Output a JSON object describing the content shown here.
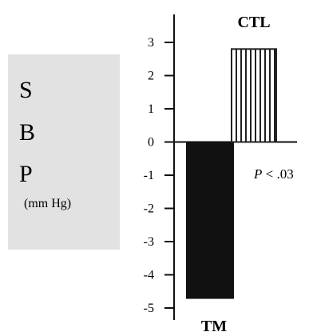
{
  "chart_data": {
    "type": "bar",
    "categories": [
      "TM",
      "CTL"
    ],
    "values": [
      -4.7,
      2.8
    ],
    "ylabel_letters": [
      "S",
      "B",
      "P"
    ],
    "ylabel_unit": "(mm Hg)",
    "ylim": [
      -5,
      3
    ],
    "yticks": [
      3,
      2,
      1,
      0,
      -1,
      -2,
      -3,
      -4,
      -5
    ],
    "ytick_labels": [
      "3",
      "2",
      "1",
      "0",
      "-1",
      "-2",
      "-3",
      "-4",
      "-5"
    ],
    "annotation_p": "P",
    "annotation_rest": " < .03",
    "bar_styles": [
      "solid",
      "vertical-hatch"
    ],
    "colors": {
      "solid_fill": "#111111",
      "hatch_stroke": "#222222",
      "axis": "#111111",
      "label_box": "#e2e2e2"
    },
    "grid": false,
    "legend": "none"
  }
}
